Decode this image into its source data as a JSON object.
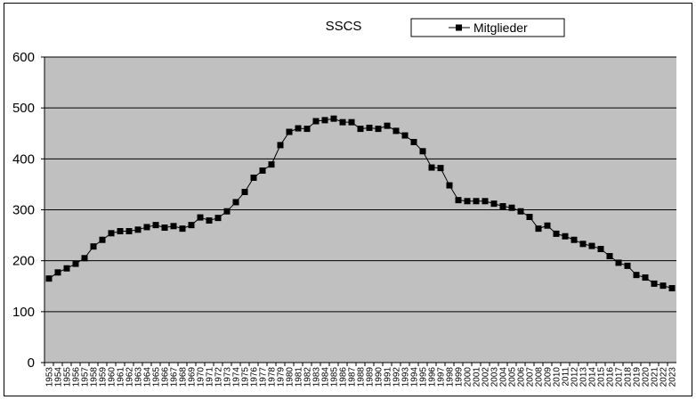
{
  "chart_data": {
    "type": "line",
    "title": "SSCS",
    "xlabel": "",
    "ylabel": "",
    "ylim": [
      0,
      600
    ],
    "yticks": [
      0,
      100,
      200,
      300,
      400,
      500,
      600
    ],
    "grid": true,
    "legend": "top-right",
    "colors": {
      "plot_bg": "#c0c0c0",
      "line": "#000000",
      "marker": "#000000"
    },
    "x": [
      "1953",
      "1954",
      "1955",
      "1956",
      "1957",
      "1958",
      "1959",
      "1960",
      "1961",
      "1962",
      "1963",
      "1964",
      "1965",
      "1966",
      "1967",
      "1968",
      "1969",
      "1970",
      "1971",
      "1972",
      "1973",
      "1974",
      "1975",
      "1976",
      "1977",
      "1978",
      "1979",
      "1980",
      "1981",
      "1982",
      "1983",
      "1984",
      "1985",
      "1986",
      "1987",
      "1988",
      "1989",
      "1990",
      "1991",
      "1992",
      "1993",
      "1994",
      "1995",
      "1996",
      "1997",
      "1998",
      "1999",
      "2000",
      "2001",
      "2002",
      "2003",
      "2004",
      "2005",
      "2006",
      "2007",
      "2008",
      "2009",
      "2010",
      "2011",
      "2012",
      "2013",
      "2014",
      "2015",
      "2016",
      "2017",
      "2018",
      "2019",
      "2020",
      "2021",
      "2022",
      "2023"
    ],
    "series": [
      {
        "name": "Mitglieder",
        "values": [
          165,
          177,
          185,
          194,
          205,
          228,
          241,
          254,
          258,
          258,
          261,
          266,
          270,
          265,
          268,
          263,
          270,
          285,
          279,
          284,
          297,
          315,
          335,
          363,
          377,
          389,
          427,
          453,
          460,
          459,
          474,
          476,
          479,
          472,
          472,
          459,
          461,
          459,
          465,
          455,
          446,
          433,
          415,
          383,
          382,
          348,
          319,
          317,
          317,
          317,
          312,
          307,
          304,
          297,
          286,
          263,
          269,
          253,
          248,
          241,
          233,
          229,
          223,
          209,
          196,
          190,
          172,
          167,
          155,
          151,
          146
        ]
      }
    ]
  }
}
